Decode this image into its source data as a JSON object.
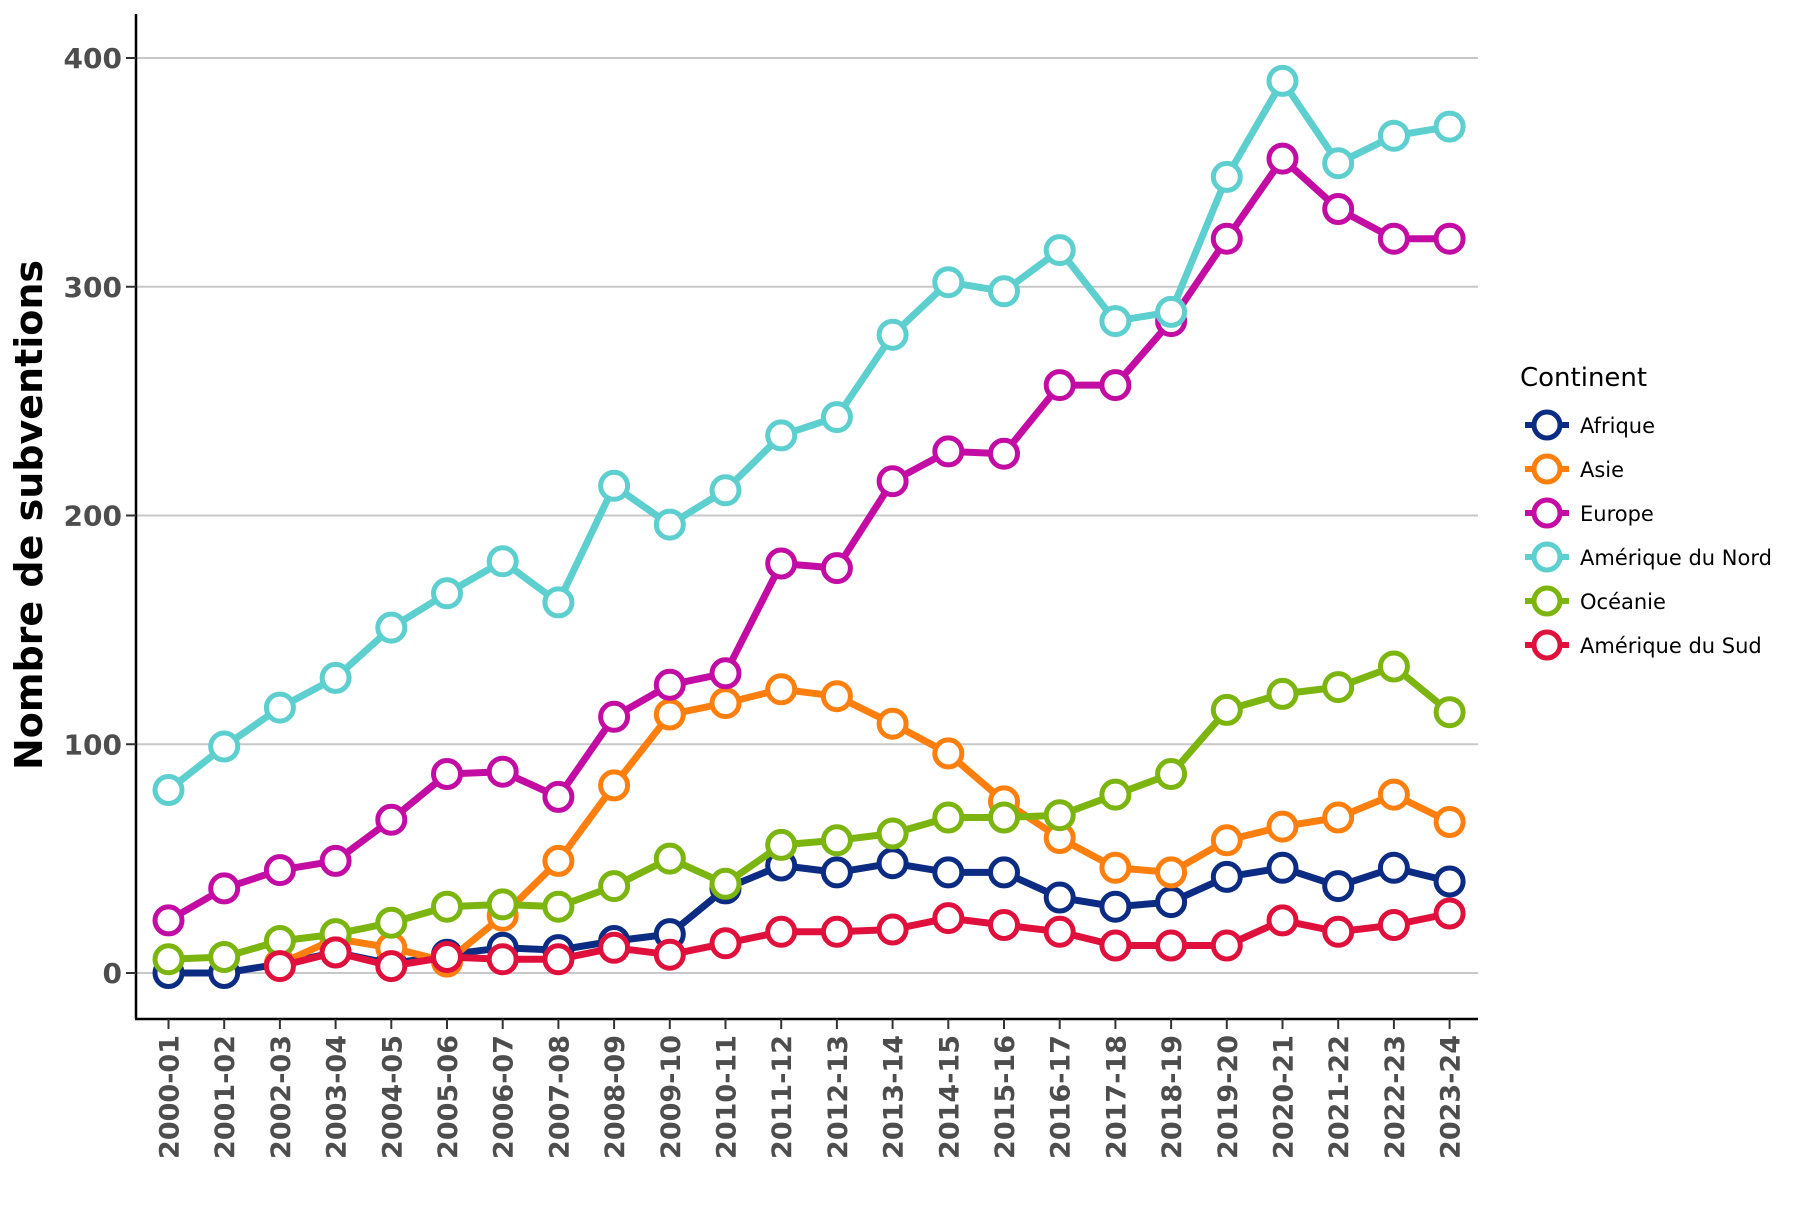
{
  "chart_data": {
    "type": "line",
    "title": "",
    "xlabel": "",
    "ylabel": "Nombre de subventions",
    "ylim": [
      -20,
      420
    ],
    "yticks": [
      0,
      100,
      200,
      300,
      400
    ],
    "grid": "horizontal major",
    "legend": {
      "title": "Continent",
      "position": "right"
    },
    "categories": [
      "2000-01",
      "2001-02",
      "2002-03",
      "2003-04",
      "2004-05",
      "2005-06",
      "2006-07",
      "2007-08",
      "2008-09",
      "2009-10",
      "2010-11",
      "2011-12",
      "2012-13",
      "2013-14",
      "2014-15",
      "2015-16",
      "2016-17",
      "2017-18",
      "2018-19",
      "2019-20",
      "2020-21",
      "2021-22",
      "2022-23",
      "2023-24"
    ],
    "series": [
      {
        "name": "Afrique",
        "color": "#0c2c84",
        "values": [
          0,
          0,
          4,
          9,
          4,
          8,
          11,
          10,
          14,
          17,
          37,
          47,
          44,
          48,
          44,
          44,
          33,
          29,
          31,
          42,
          46,
          38,
          46,
          40
        ]
      },
      {
        "name": "Asie",
        "color": "#ff7f0e",
        "values": [
          null,
          null,
          4,
          15,
          11,
          5,
          25,
          49,
          82,
          113,
          118,
          124,
          121,
          109,
          96,
          75,
          59,
          46,
          44,
          58,
          64,
          68,
          78,
          66
        ]
      },
      {
        "name": "Europe",
        "color": "#c20ca3",
        "values": [
          23,
          37,
          45,
          49,
          67,
          87,
          88,
          77,
          112,
          126,
          131,
          179,
          177,
          215,
          228,
          227,
          257,
          257,
          285,
          321,
          356,
          334,
          321,
          321
        ]
      },
      {
        "name": "Amérique du Nord",
        "color": "#5ecfcf",
        "values": [
          80,
          99,
          116,
          129,
          151,
          166,
          180,
          162,
          213,
          196,
          211,
          235,
          243,
          279,
          302,
          298,
          316,
          285,
          289,
          348,
          390,
          354,
          366,
          370
        ]
      },
      {
        "name": "Océanie",
        "color": "#7cb50f",
        "values": [
          6,
          7,
          14,
          17,
          22,
          29,
          30,
          29,
          38,
          50,
          39,
          56,
          58,
          61,
          68,
          68,
          69,
          78,
          87,
          115,
          122,
          125,
          134,
          114
        ]
      },
      {
        "name": "Amérique du Sud",
        "color": "#e0103c",
        "values": [
          null,
          null,
          3,
          9,
          3,
          7,
          6,
          6,
          11,
          8,
          13,
          18,
          18,
          19,
          24,
          21,
          18,
          12,
          12,
          12,
          23,
          18,
          21,
          26
        ]
      }
    ]
  }
}
